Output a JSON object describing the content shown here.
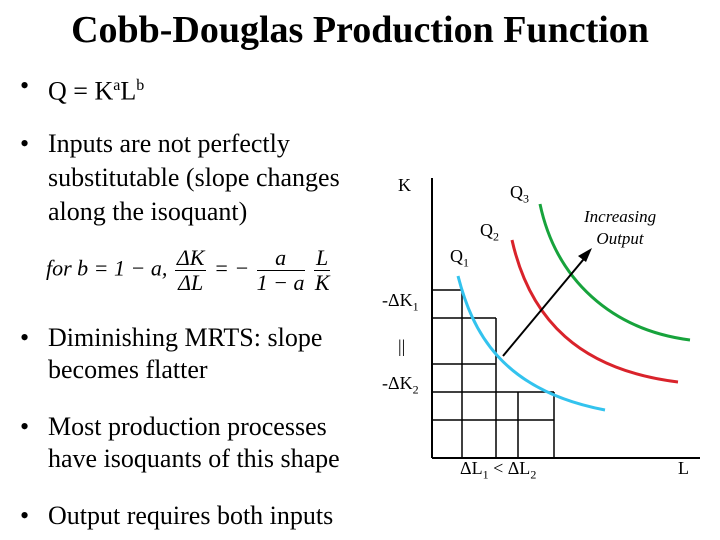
{
  "title": "Cobb-Douglas Production Function",
  "bullets": {
    "b1": "Q = K",
    "b1_a": "a",
    "b1_L": "L",
    "b1_b": "b",
    "b2_l1": "Inputs are not perfectly",
    "b2_l2": "substitutable (slope changes",
    "b2_l3": "along the isoquant)",
    "b3_l1": "Diminishing MRTS: slope",
    "b3_l2": "becomes flatter",
    "b4_l1": "Most production processes",
    "b4_l2": "have isoquants of this shape",
    "b5": "Output requires both inputs",
    "marker": "•"
  },
  "equation": {
    "for_text": "for b = 1 − a,",
    "lhs_num": "ΔK",
    "lhs_den": "ΔL",
    "eq_sign": "= −",
    "mid_num": "a",
    "mid_den": "1 − a",
    "rhs_num": "L",
    "rhs_den": "K"
  },
  "graph": {
    "y_axis_label": "K",
    "x_axis_label": "L",
    "q1": "Q",
    "q1_sub": "1",
    "q2": "Q",
    "q2_sub": "2",
    "q3": "Q",
    "q3_sub": "3",
    "increasing_l1": "Increasing",
    "increasing_l2": "Output",
    "dk1": "-ΔK",
    "dk1_sub": "1",
    "equal_sign": "||",
    "dk2": "-ΔK",
    "dk2_sub": "2",
    "dl_compare_a": "ΔL",
    "dl_compare_a_sub": "1",
    "dl_compare_lt": " < ",
    "dl_compare_b": "ΔL",
    "dl_compare_b_sub": "2",
    "colors": {
      "q1": "#33c3ee",
      "q2": "#d9232b",
      "q3": "#17a33c",
      "axis": "#000000"
    }
  }
}
